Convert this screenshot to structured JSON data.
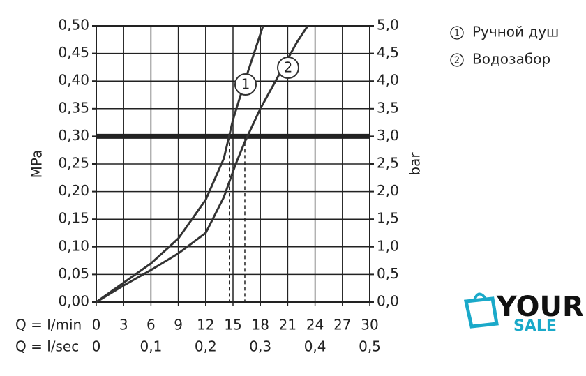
{
  "chart_data": {
    "type": "line",
    "y_label": "MPa",
    "y2_label": "bar",
    "x_label": "Q = l/min",
    "x2_label": "Q = l/sec",
    "xlim": [
      0,
      30
    ],
    "xticks": [
      0,
      3,
      6,
      9,
      12,
      15,
      18,
      21,
      24,
      27,
      30
    ],
    "x2lim": [
      0,
      0.5
    ],
    "x2ticks": [
      0,
      {
        "value": 0.1,
        "label": "0,1"
      },
      {
        "value": 0.2,
        "label": "0,2"
      },
      {
        "value": 0.3,
        "label": "0,3"
      },
      {
        "value": 0.4,
        "label": "0,4"
      },
      {
        "value": 0.5,
        "label": "0,5"
      }
    ],
    "ylim": [
      0,
      0.5
    ],
    "yticks": [
      {
        "value": 0,
        "label": "0,00"
      },
      {
        "value": 0.05,
        "label": "0,05"
      },
      {
        "value": 0.1,
        "label": "0,10"
      },
      {
        "value": 0.15,
        "label": "0,15"
      },
      {
        "value": 0.2,
        "label": "0,20"
      },
      {
        "value": 0.25,
        "label": "0,25"
      },
      {
        "value": 0.3,
        "label": "0,30"
      },
      {
        "value": 0.35,
        "label": "0,35"
      },
      {
        "value": 0.4,
        "label": "0,40"
      },
      {
        "value": 0.45,
        "label": "0,45"
      },
      {
        "value": 0.5,
        "label": "0,50"
      }
    ],
    "y2lim": [
      0,
      5
    ],
    "y2ticks": [
      {
        "value": 0,
        "label": "0,0"
      },
      {
        "value": 0.5,
        "label": "0,5"
      },
      {
        "value": 1,
        "label": "1,0"
      },
      {
        "value": 1.5,
        "label": "1,5"
      },
      {
        "value": 2,
        "label": "2,0"
      },
      {
        "value": 2.5,
        "label": "2,5"
      },
      {
        "value": 3,
        "label": "3,0"
      },
      {
        "value": 3.5,
        "label": "3,5"
      },
      {
        "value": 4,
        "label": "4,0"
      },
      {
        "value": 4.5,
        "label": "4,5"
      },
      {
        "value": 5,
        "label": "5,0"
      }
    ],
    "grid": true,
    "color": "#333333",
    "hline": 0.3,
    "vlines": [
      14.6,
      16.3
    ],
    "series": [
      {
        "name": "Ручной душ",
        "label": "1",
        "x": [
          0,
          3,
          6,
          9,
          12,
          14,
          15,
          16.5,
          18.3
        ],
        "values": [
          0,
          0.035,
          0.07,
          0.115,
          0.185,
          0.26,
          0.33,
          0.41,
          0.5
        ]
      },
      {
        "name": "Водозабор",
        "label": "2",
        "x": [
          0,
          3,
          6,
          9,
          12,
          14,
          15.3,
          16.3,
          18,
          20,
          22,
          23.2
        ],
        "values": [
          0,
          0.03,
          0.058,
          0.088,
          0.125,
          0.19,
          0.25,
          0.29,
          0.35,
          0.41,
          0.47,
          0.5
        ]
      }
    ]
  },
  "logo": {
    "line1": "YOUR",
    "line2": "SALE"
  }
}
